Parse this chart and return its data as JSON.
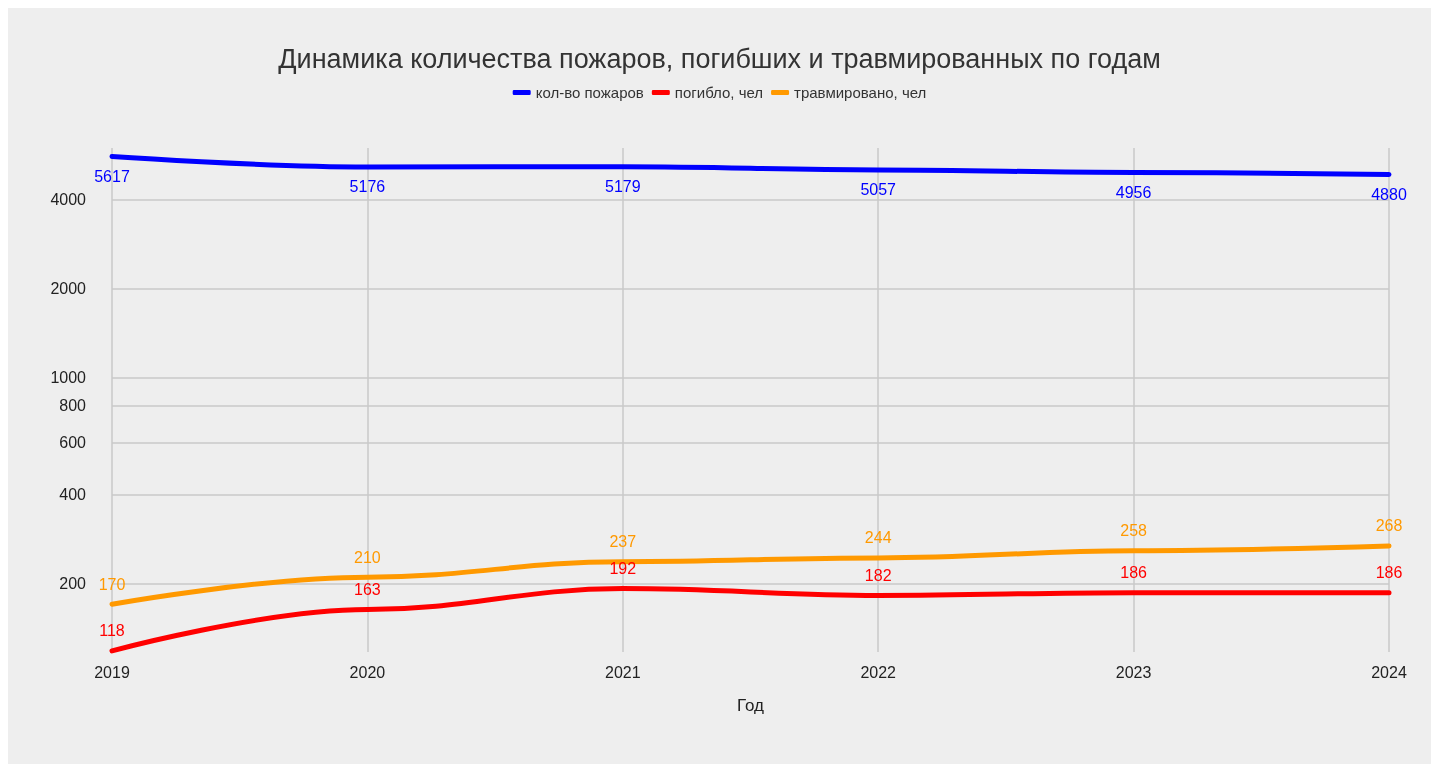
{
  "chart_data": {
    "type": "line",
    "title": "Динамика количества пожаров, погибших и травмированных по годам",
    "xlabel": "Год",
    "categories": [
      "2019",
      "2020",
      "2021",
      "2022",
      "2023",
      "2024"
    ],
    "series": [
      {
        "name": "кол-во пожаров",
        "color": "#0000ff",
        "values": [
          5617,
          5176,
          5179,
          5057,
          4956,
          4880
        ]
      },
      {
        "name": "погибло, чел",
        "color": "#ff0000",
        "values": [
          118,
          163,
          192,
          182,
          186,
          186
        ]
      },
      {
        "name": "травмировано, чел",
        "color": "#ff9900",
        "values": [
          170,
          210,
          237,
          244,
          258,
          268
        ]
      }
    ],
    "log": "y",
    "ylim": [
      117,
      6000
    ],
    "yticks": [
      200,
      400,
      600,
      800,
      1000,
      2000,
      4000
    ],
    "grid": true,
    "legend": "top",
    "marker": "none",
    "line_style": "solid",
    "data_labels": true
  }
}
